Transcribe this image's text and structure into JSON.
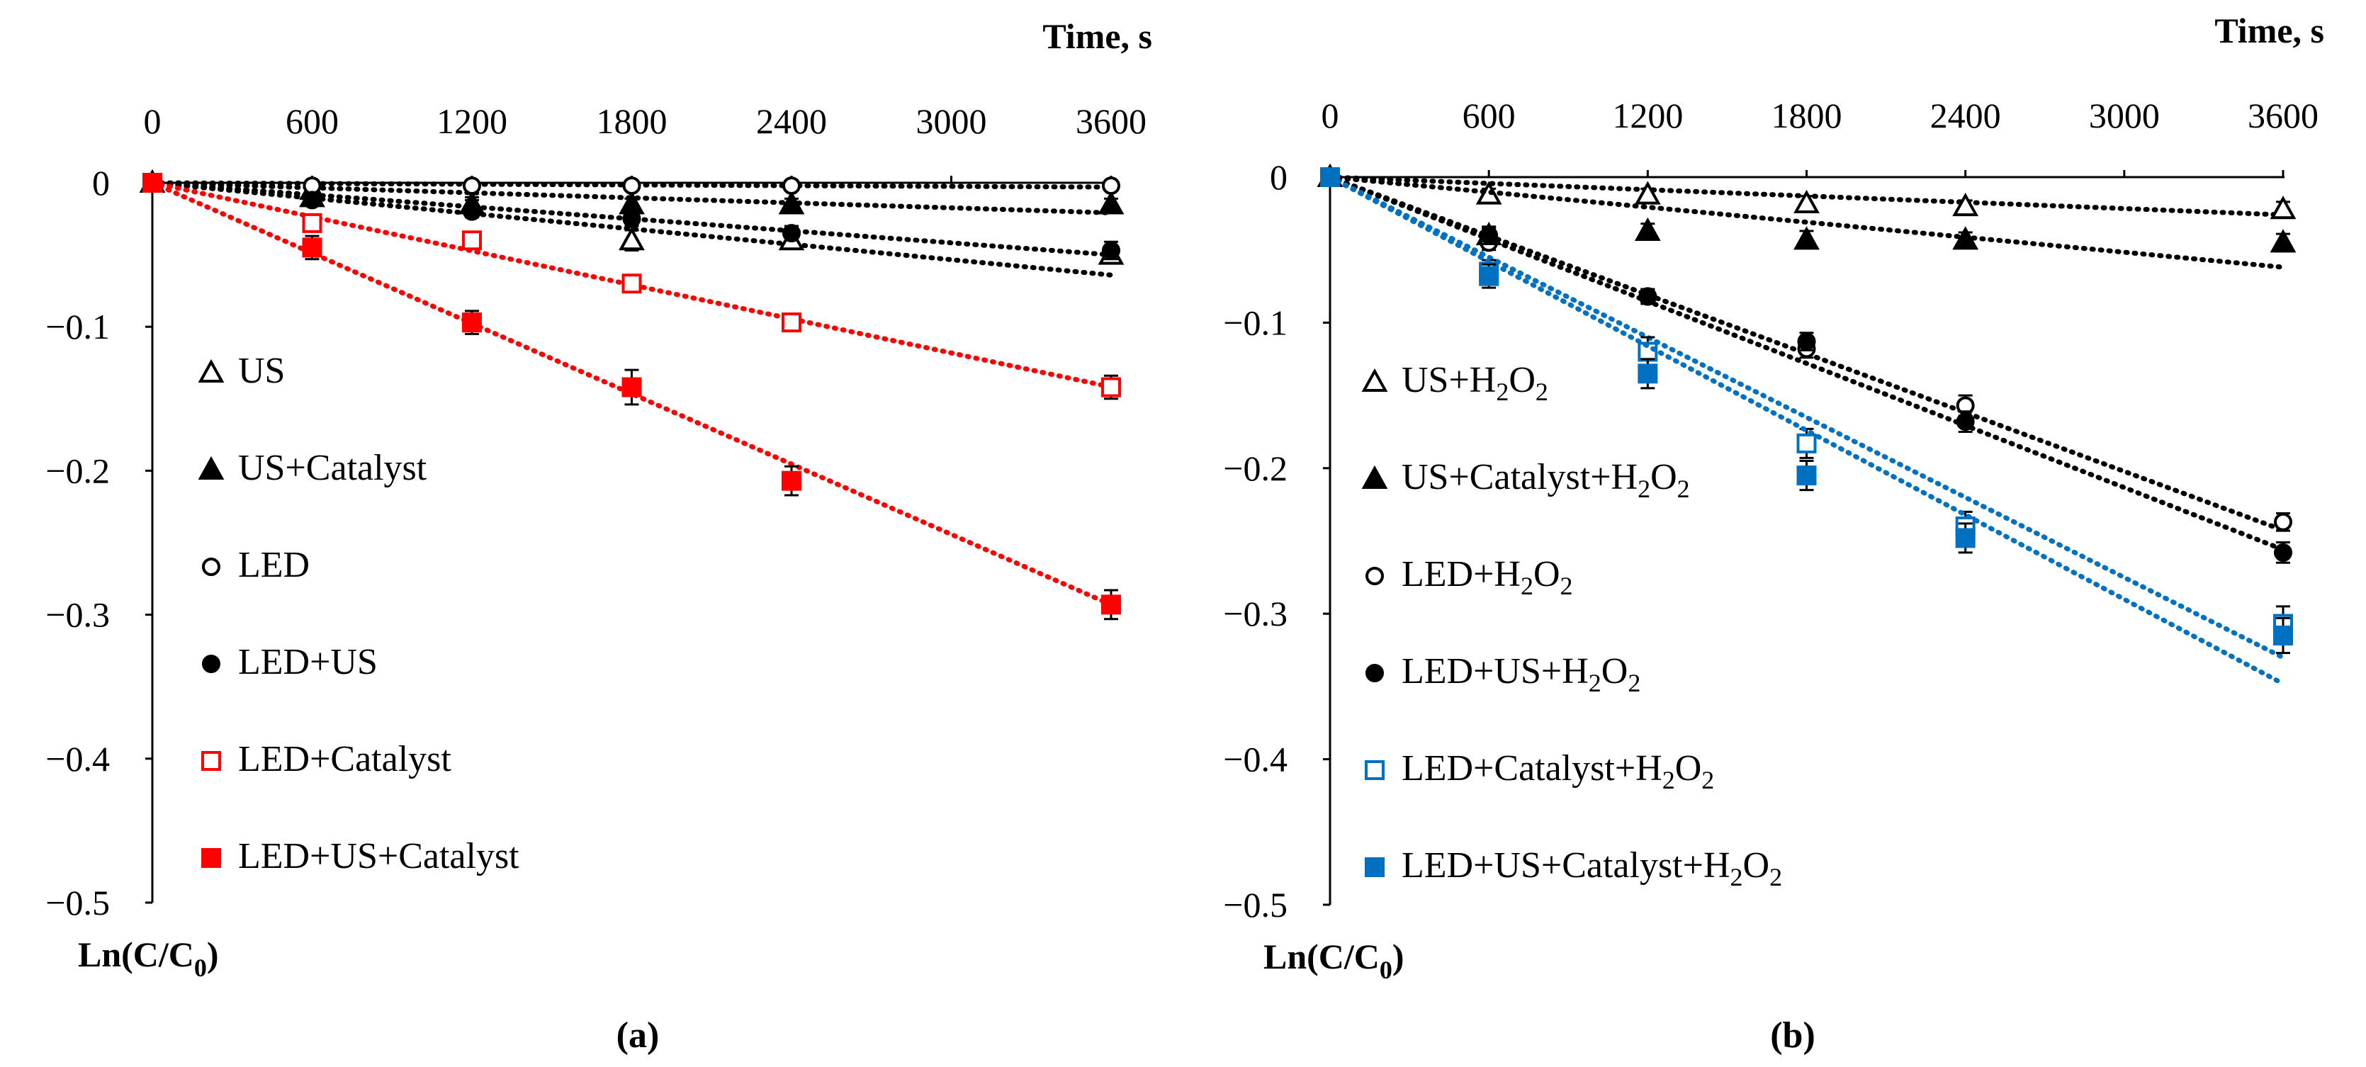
{
  "chart_data": [
    {
      "type": "scatter",
      "panel_label": "(a)",
      "xlabel": "Time, s",
      "ylabel_main": "Ln(C/C",
      "ylabel_sub": "0",
      "ylabel_close": ")",
      "xlim": [
        0,
        3600
      ],
      "ylim": [
        -0.5,
        0
      ],
      "xticks": [
        0,
        600,
        1200,
        1800,
        2400,
        3000,
        3600
      ],
      "xtick_labels": [
        "0",
        "600",
        "1200",
        "1800",
        "2400",
        "3000",
        "3600"
      ],
      "yticks": [
        0,
        -0.1,
        -0.2,
        -0.3,
        -0.4,
        -0.5
      ],
      "ytick_labels": [
        "0",
        "−0.1",
        "−0.2",
        "−0.3",
        "−0.4",
        "−0.5"
      ],
      "x": [
        0,
        600,
        1200,
        1800,
        2400,
        3600
      ],
      "legend_position": "left",
      "series": [
        {
          "name": "US",
          "label": [
            {
              "t": "US"
            }
          ],
          "marker": "triangle-open",
          "color": "#000000",
          "values": [
            0,
            -0.005,
            -0.015,
            -0.04,
            -0.04,
            -0.05
          ],
          "errors": [
            0,
            0.004,
            0.005,
            0.007,
            0.005,
            0.006
          ],
          "trend_slope": -1.78e-05
        },
        {
          "name": "US+Catalyst",
          "label": [
            {
              "t": "US+Catalyst"
            }
          ],
          "marker": "triangle-filled",
          "color": "#000000",
          "values": [
            0,
            -0.01,
            -0.015,
            -0.015,
            -0.015,
            -0.015
          ],
          "errors": [
            0,
            0.003,
            0.003,
            0.004,
            0.004,
            0.004
          ],
          "trend_slope": -5.8e-06
        },
        {
          "name": "LED",
          "label": [
            {
              "t": "LED"
            }
          ],
          "marker": "circle-open",
          "color": "#000000",
          "values": [
            0,
            -0.002,
            -0.002,
            -0.002,
            -0.002,
            -0.002
          ],
          "errors": [
            0,
            0.002,
            0.002,
            0.002,
            0.002,
            0.002
          ],
          "trend_slope": -8.3e-07
        },
        {
          "name": "LED+US",
          "label": [
            {
              "t": "LED+US"
            }
          ],
          "marker": "circle-filled",
          "color": "#000000",
          "values": [
            0,
            -0.012,
            -0.02,
            -0.025,
            -0.035,
            -0.047
          ],
          "errors": [
            0,
            0.004,
            0.004,
            0.005,
            0.005,
            0.006
          ],
          "trend_slope": -1.39e-05
        },
        {
          "name": "LED+Catalyst",
          "label": [
            {
              "t": "LED+Catalyst"
            }
          ],
          "marker": "square-open",
          "color": "#ff0000",
          "values": [
            0,
            -0.028,
            -0.04,
            -0.07,
            -0.097,
            -0.142
          ],
          "errors": [
            0,
            0.005,
            0.006,
            0.005,
            0.006,
            0.008
          ],
          "trend_slope": -3.94e-05
        },
        {
          "name": "LED+US+Catalyst",
          "label": [
            {
              "t": "LED+US+Catalyst"
            }
          ],
          "marker": "square-filled",
          "color": "#ff0000",
          "values": [
            0,
            -0.045,
            -0.097,
            -0.142,
            -0.207,
            -0.293
          ],
          "errors": [
            0,
            0.008,
            0.008,
            0.012,
            0.01,
            0.01
          ],
          "trend_slope": -8.14e-05
        }
      ]
    },
    {
      "type": "scatter",
      "panel_label": "(b)",
      "xlabel": "Time, s",
      "ylabel_main": "Ln(C/C",
      "ylabel_sub": "0",
      "ylabel_close": ")",
      "xlim": [
        0,
        3600
      ],
      "ylim": [
        -0.5,
        0
      ],
      "xticks": [
        0,
        600,
        1200,
        1800,
        2400,
        3000,
        3600
      ],
      "xtick_labels": [
        "0",
        "600",
        "1200",
        "1800",
        "2400",
        "3000",
        "3600"
      ],
      "yticks": [
        0,
        -0.1,
        -0.2,
        -0.3,
        -0.4,
        -0.5
      ],
      "ytick_labels": [
        "0",
        "−0.1",
        "−0.2",
        "−0.3",
        "−0.4",
        "−0.5"
      ],
      "x": [
        0,
        600,
        1200,
        1800,
        2400,
        3600
      ],
      "legend_position": "left",
      "series": [
        {
          "name": "US+H2O2",
          "label": [
            {
              "t": "US+H"
            },
            {
              "t": "2",
              "sub": true
            },
            {
              "t": "O"
            },
            {
              "t": "2",
              "sub": true
            }
          ],
          "marker": "triangle-open",
          "color": "#000000",
          "values": [
            0,
            -0.012,
            -0.012,
            -0.018,
            -0.02,
            -0.022
          ],
          "errors": [
            0,
            0.004,
            0.004,
            0.005,
            0.004,
            0.005
          ],
          "trend_slope": -7.2e-06
        },
        {
          "name": "US+Catalyst+H2O2",
          "label": [
            {
              "t": "US+Catalyst+H"
            },
            {
              "t": "2",
              "sub": true
            },
            {
              "t": "O"
            },
            {
              "t": "2",
              "sub": true
            }
          ],
          "marker": "triangle-filled",
          "color": "#000000",
          "values": [
            0,
            -0.04,
            -0.037,
            -0.043,
            -0.043,
            -0.045
          ],
          "errors": [
            0,
            0.005,
            0.005,
            0.006,
            0.005,
            0.006
          ],
          "trend_slope": -1.72e-05
        },
        {
          "name": "LED+H2O2",
          "label": [
            {
              "t": "LED+H"
            },
            {
              "t": "2",
              "sub": true
            },
            {
              "t": "O"
            },
            {
              "t": "2",
              "sub": true
            }
          ],
          "marker": "circle-open",
          "color": "#000000",
          "values": [
            0,
            -0.045,
            -0.082,
            -0.118,
            -0.157,
            -0.237
          ],
          "errors": [
            0,
            0.005,
            0.005,
            0.006,
            0.007,
            0.006
          ],
          "trend_slope": -6.74e-05
        },
        {
          "name": "LED+US+H2O2",
          "label": [
            {
              "t": "LED+US+H"
            },
            {
              "t": "2",
              "sub": true
            },
            {
              "t": "O"
            },
            {
              "t": "2",
              "sub": true
            }
          ],
          "marker": "circle-filled",
          "color": "#000000",
          "values": [
            0,
            -0.04,
            -0.082,
            -0.113,
            -0.168,
            -0.258
          ],
          "errors": [
            0,
            0.006,
            0.005,
            0.006,
            0.007,
            0.007
          ],
          "trend_slope": -7.11e-05
        },
        {
          "name": "LED+Catalyst+H2O2",
          "label": [
            {
              "t": "LED+Catalyst+H"
            },
            {
              "t": "2",
              "sub": true
            },
            {
              "t": "O"
            },
            {
              "t": "2",
              "sub": true
            }
          ],
          "marker": "square-open",
          "color": "#0070c0",
          "values": [
            0,
            -0.065,
            -0.12,
            -0.183,
            -0.24,
            -0.307
          ],
          "errors": [
            0,
            0.008,
            0.01,
            0.01,
            0.01,
            0.012
          ],
          "trend_slope": -9.17e-05
        },
        {
          "name": "LED+US+Catalyst+H2O2",
          "label": [
            {
              "t": "LED+US+Catalyst+H"
            },
            {
              "t": "2",
              "sub": true
            },
            {
              "t": "O"
            },
            {
              "t": "2",
              "sub": true
            }
          ],
          "marker": "square-filled",
          "color": "#0070c0",
          "values": [
            0,
            -0.068,
            -0.135,
            -0.205,
            -0.248,
            -0.315
          ],
          "errors": [
            0,
            0.008,
            0.01,
            0.01,
            0.01,
            0.012
          ],
          "trend_slope": -9.67e-05
        }
      ]
    }
  ]
}
